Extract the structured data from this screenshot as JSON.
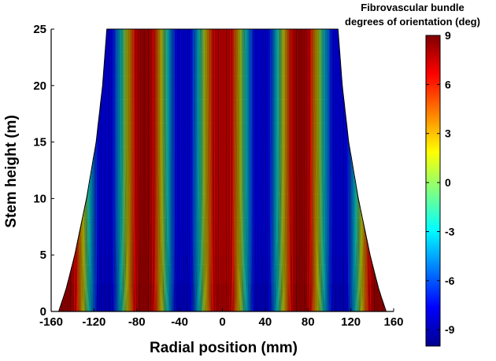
{
  "chart_data": {
    "type": "heatmap",
    "title": "",
    "xlabel": "Radial position (mm)",
    "ylabel": "Stem height (m)",
    "xlim": [
      -160,
      160
    ],
    "ylim": [
      0,
      25
    ],
    "x_ticks": [
      "-160",
      "-120",
      "-80",
      "-40",
      "0",
      "40",
      "80",
      "120",
      "160"
    ],
    "y_ticks": [
      "0",
      "5",
      "10",
      "15",
      "20",
      "25"
    ],
    "stem_profile": {
      "height": [
        0,
        2,
        5,
        10,
        15,
        20,
        25
      ],
      "half_width": [
        153,
        146,
        138,
        127,
        118,
        112,
        108
      ]
    },
    "orientation_stripes": {
      "peak_positions_mm": [
        -146,
        -73,
        0,
        73,
        146
      ],
      "peak_values_deg": [
        9,
        9,
        9,
        9,
        9
      ],
      "trough_positions_mm": [
        -110,
        -37,
        37,
        110
      ],
      "trough_values_deg": [
        -9,
        -9,
        -9,
        -9
      ],
      "contour_interval_deg": 0.5
    },
    "colorbar": {
      "title_lines": [
        "Fibrovascular bundle",
        "degrees of orientation (deg)"
      ],
      "range": [
        -10,
        9
      ],
      "ticks": [
        "9",
        "6",
        "3",
        "0",
        "-3",
        "-6",
        "-9"
      ],
      "colormap": "jet"
    }
  }
}
